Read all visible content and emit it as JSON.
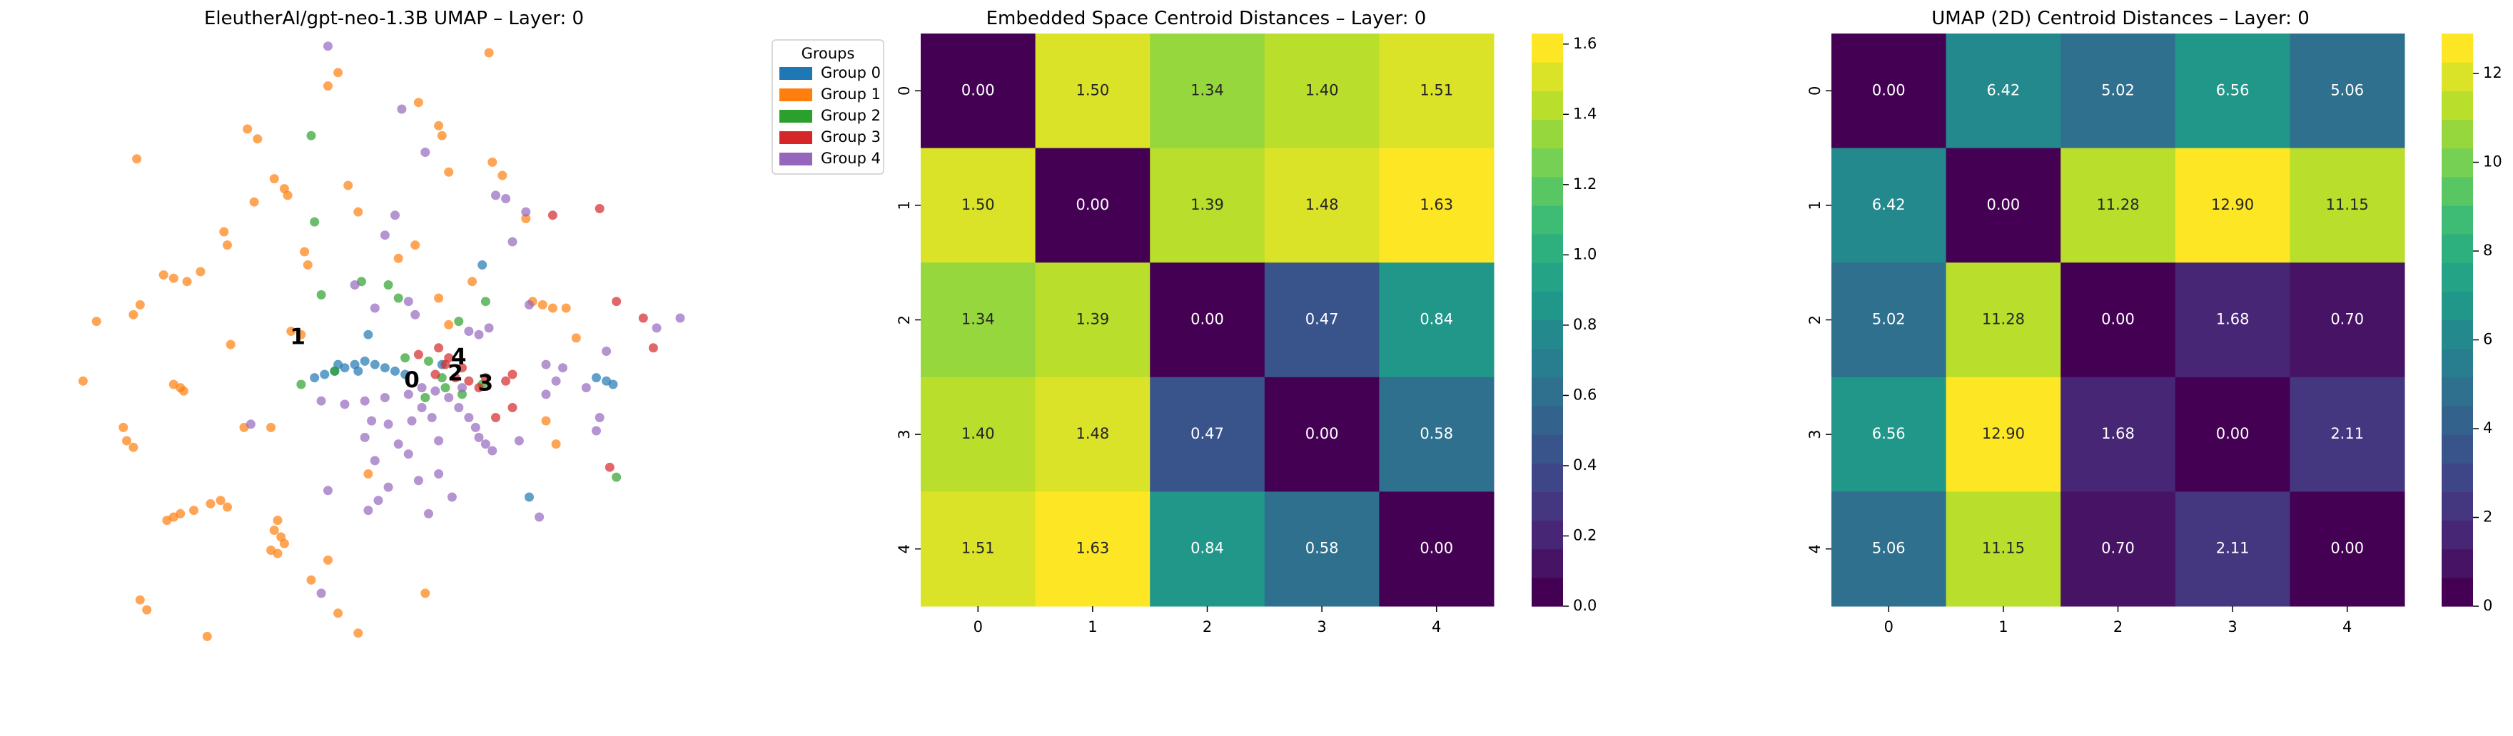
{
  "chart_data": [
    {
      "type": "scatter",
      "title": "EleutherAI/gpt-neo-1.3B UMAP – Layer: 0",
      "legend": {
        "title": "Groups",
        "placement": "top-right, outside plot",
        "entries": [
          "Group 0",
          "Group 1",
          "Group 2",
          "Group 3",
          "Group 4"
        ]
      },
      "colors": [
        "#1f77b4",
        "#ff7f0e",
        "#2ca02c",
        "#d62728",
        "#9467bd"
      ],
      "xlim": [
        -10,
        10
      ],
      "ylim": [
        -10,
        10
      ],
      "grid": false,
      "axes_visible": false,
      "centroid_labels": [
        {
          "label": "0",
          "x": 1.0,
          "y": -0.2
        },
        {
          "label": "1",
          "x": -2.4,
          "y": 1.1
        },
        {
          "label": "2",
          "x": 2.3,
          "y": 0.0
        },
        {
          "label": "3",
          "x": 3.2,
          "y": -0.3
        },
        {
          "label": "4",
          "x": 2.4,
          "y": 0.5
        }
      ],
      "series": [
        {
          "group": 0,
          "points": [
            [
              -1.9,
              -0.1
            ],
            [
              -1.6,
              0.0
            ],
            [
              -1.3,
              0.1
            ],
            [
              -1.0,
              0.2
            ],
            [
              -0.7,
              0.3
            ],
            [
              -0.4,
              0.4
            ],
            [
              -0.1,
              0.3
            ],
            [
              0.2,
              0.2
            ],
            [
              0.5,
              0.1
            ],
            [
              0.8,
              0.0
            ],
            [
              -1.2,
              0.3
            ],
            [
              -0.6,
              0.1
            ],
            [
              6.5,
              -0.1
            ],
            [
              6.8,
              -0.2
            ],
            [
              7.0,
              -0.3
            ],
            [
              3.1,
              3.3
            ],
            [
              4.5,
              -3.7
            ],
            [
              -0.3,
              1.2
            ],
            [
              1.9,
              0.3
            ]
          ]
        },
        {
          "group": 1,
          "points": [
            [
              -7.2,
              6.5
            ],
            [
              -3.9,
              7.4
            ],
            [
              -3.6,
              7.1
            ],
            [
              -1.5,
              8.7
            ],
            [
              -1.2,
              9.1
            ],
            [
              1.2,
              8.2
            ],
            [
              1.8,
              7.5
            ],
            [
              1.9,
              7.2
            ],
            [
              3.3,
              9.7
            ],
            [
              -0.9,
              5.7
            ],
            [
              -3.1,
              5.9
            ],
            [
              -2.8,
              5.6
            ],
            [
              -2.7,
              5.4
            ],
            [
              -0.6,
              4.9
            ],
            [
              2.1,
              6.1
            ],
            [
              3.4,
              6.4
            ],
            [
              3.7,
              6.0
            ],
            [
              -3.7,
              5.2
            ],
            [
              -4.6,
              4.3
            ],
            [
              -4.5,
              3.9
            ],
            [
              -2.2,
              3.7
            ],
            [
              -2.1,
              3.3
            ],
            [
              0.6,
              3.5
            ],
            [
              1.1,
              3.9
            ],
            [
              -6.4,
              3.0
            ],
            [
              -6.1,
              2.9
            ],
            [
              -5.7,
              2.8
            ],
            [
              -7.1,
              2.1
            ],
            [
              -7.3,
              1.8
            ],
            [
              -8.4,
              1.6
            ],
            [
              -5.3,
              3.1
            ],
            [
              -4.4,
              0.9
            ],
            [
              -2.6,
              1.3
            ],
            [
              -2.3,
              1.2
            ],
            [
              -8.8,
              -0.2
            ],
            [
              -6.1,
              -0.3
            ],
            [
              -5.9,
              -0.4
            ],
            [
              -5.8,
              -0.5
            ],
            [
              -4.0,
              -1.6
            ],
            [
              -3.2,
              -1.6
            ],
            [
              -7.6,
              -1.6
            ],
            [
              -7.5,
              -2.0
            ],
            [
              -7.3,
              -2.2
            ],
            [
              -6.3,
              -4.4
            ],
            [
              -6.1,
              -4.3
            ],
            [
              -5.9,
              -4.2
            ],
            [
              -5.5,
              -4.1
            ],
            [
              -5.0,
              -3.9
            ],
            [
              -4.7,
              -3.8
            ],
            [
              -4.5,
              -4.0
            ],
            [
              -7.1,
              -6.8
            ],
            [
              -6.9,
              -7.1
            ],
            [
              -5.1,
              -7.9
            ],
            [
              -3.0,
              -4.4
            ],
            [
              -3.1,
              -4.7
            ],
            [
              -2.9,
              -4.9
            ],
            [
              -2.8,
              -5.1
            ],
            [
              -3.2,
              -5.3
            ],
            [
              -3.0,
              -5.4
            ],
            [
              -2.0,
              -6.2
            ],
            [
              -1.5,
              -5.6
            ],
            [
              -1.2,
              -7.2
            ],
            [
              -0.6,
              -7.8
            ],
            [
              1.4,
              -6.6
            ],
            [
              -0.3,
              -3.0
            ],
            [
              2.8,
              2.8
            ],
            [
              4.6,
              2.2
            ],
            [
              4.9,
              2.1
            ],
            [
              5.2,
              2.0
            ],
            [
              5.6,
              2.0
            ],
            [
              5.0,
              -1.4
            ],
            [
              5.3,
              -2.1
            ],
            [
              4.4,
              4.7
            ],
            [
              5.9,
              1.1
            ],
            [
              1.8,
              2.3
            ],
            [
              2.1,
              1.5
            ]
          ]
        },
        {
          "group": 2,
          "points": [
            [
              -2.0,
              7.2
            ],
            [
              -1.9,
              4.6
            ],
            [
              -1.7,
              2.4
            ],
            [
              -0.5,
              2.8
            ],
            [
              0.3,
              2.7
            ],
            [
              0.6,
              2.3
            ],
            [
              3.2,
              2.2
            ],
            [
              2.4,
              1.6
            ],
            [
              0.8,
              0.5
            ],
            [
              1.5,
              0.4
            ],
            [
              2.0,
              -0.4
            ],
            [
              2.5,
              -0.6
            ],
            [
              -2.3,
              -0.3
            ],
            [
              -1.3,
              0.1
            ],
            [
              1.9,
              -0.1
            ],
            [
              3.1,
              -0.3
            ],
            [
              7.1,
              -3.1
            ],
            [
              1.4,
              -0.7
            ]
          ]
        },
        {
          "group": 3,
          "points": [
            [
              1.8,
              0.8
            ],
            [
              2.1,
              0.5
            ],
            [
              2.5,
              0.2
            ],
            [
              2.0,
              0.3
            ],
            [
              1.7,
              0.0
            ],
            [
              2.3,
              -0.1
            ],
            [
              2.7,
              -0.2
            ],
            [
              3.0,
              -0.4
            ],
            [
              3.8,
              -0.2
            ],
            [
              4.0,
              0.0
            ],
            [
              5.2,
              4.8
            ],
            [
              6.6,
              5.0
            ],
            [
              7.1,
              2.2
            ],
            [
              7.9,
              1.7
            ],
            [
              8.2,
              0.8
            ],
            [
              6.9,
              -2.8
            ],
            [
              4.0,
              -1.0
            ],
            [
              3.5,
              -1.3
            ],
            [
              3.2,
              -0.1
            ],
            [
              1.2,
              0.6
            ]
          ]
        },
        {
          "group": 4,
          "points": [
            [
              -1.5,
              9.9
            ],
            [
              0.7,
              8.0
            ],
            [
              1.4,
              6.7
            ],
            [
              3.5,
              5.4
            ],
            [
              3.8,
              5.3
            ],
            [
              0.5,
              4.8
            ],
            [
              0.2,
              4.2
            ],
            [
              4.0,
              4.0
            ],
            [
              4.4,
              4.9
            ],
            [
              -0.7,
              2.7
            ],
            [
              -0.1,
              2.0
            ],
            [
              0.9,
              2.2
            ],
            [
              1.1,
              1.8
            ],
            [
              2.7,
              1.3
            ],
            [
              3.0,
              1.2
            ],
            [
              3.3,
              1.4
            ],
            [
              4.5,
              2.1
            ],
            [
              5.0,
              0.3
            ],
            [
              5.5,
              0.2
            ],
            [
              6.2,
              -0.4
            ],
            [
              8.3,
              1.4
            ],
            [
              9.0,
              1.7
            ],
            [
              -1.7,
              -0.8
            ],
            [
              -1.0,
              -0.9
            ],
            [
              -0.4,
              -0.8
            ],
            [
              0.2,
              -0.7
            ],
            [
              0.9,
              -0.6
            ],
            [
              1.3,
              -0.4
            ],
            [
              1.7,
              -0.5
            ],
            [
              2.1,
              -0.7
            ],
            [
              2.4,
              -1.0
            ],
            [
              2.7,
              -1.3
            ],
            [
              2.9,
              -1.6
            ],
            [
              3.0,
              -1.9
            ],
            [
              3.2,
              -2.1
            ],
            [
              3.4,
              -2.3
            ],
            [
              1.3,
              -1.0
            ],
            [
              1.6,
              -1.3
            ],
            [
              1.0,
              -1.4
            ],
            [
              0.3,
              -1.5
            ],
            [
              -0.2,
              -1.4
            ],
            [
              0.6,
              -2.1
            ],
            [
              -0.4,
              -1.9
            ],
            [
              -0.1,
              -2.6
            ],
            [
              0.9,
              -2.4
            ],
            [
              1.8,
              -2.0
            ],
            [
              1.2,
              -3.2
            ],
            [
              0.3,
              -3.4
            ],
            [
              0.0,
              -3.8
            ],
            [
              -0.3,
              -4.1
            ],
            [
              1.5,
              -4.2
            ],
            [
              2.2,
              -3.7
            ],
            [
              4.2,
              -2.0
            ],
            [
              5.0,
              -0.6
            ],
            [
              5.3,
              -0.2
            ],
            [
              6.8,
              0.7
            ],
            [
              6.6,
              -1.3
            ],
            [
              6.5,
              -1.7
            ],
            [
              -3.8,
              -1.5
            ],
            [
              -1.5,
              -3.5
            ],
            [
              -1.7,
              -6.6
            ],
            [
              4.8,
              -4.3
            ],
            [
              1.8,
              -3.0
            ],
            [
              2.5,
              -0.4
            ]
          ]
        }
      ]
    },
    {
      "type": "heatmap",
      "title": "Embedded Space Centroid Distances – Layer: 0",
      "xticks": [
        "0",
        "1",
        "2",
        "3",
        "4"
      ],
      "yticks": [
        "0",
        "1",
        "2",
        "3",
        "4"
      ],
      "values": [
        [
          0.0,
          1.5,
          1.34,
          1.4,
          1.51
        ],
        [
          1.5,
          0.0,
          1.39,
          1.48,
          1.63
        ],
        [
          1.34,
          1.39,
          0.0,
          0.47,
          0.84
        ],
        [
          1.4,
          1.48,
          0.47,
          0.0,
          0.58
        ],
        [
          1.51,
          1.63,
          0.84,
          0.58,
          0.0
        ]
      ],
      "colormap": "viridis (discrete)",
      "vmin": 0,
      "vmax": 1.63,
      "colorbar_ticks": [
        "0.0",
        "0.2",
        "0.4",
        "0.6",
        "0.8",
        "1.0",
        "1.2",
        "1.4",
        "1.6"
      ],
      "colorbar_tick_values": [
        0.0,
        0.2,
        0.4,
        0.6,
        0.8,
        1.0,
        1.2,
        1.4,
        1.6
      ]
    },
    {
      "type": "heatmap",
      "title": "UMAP (2D) Centroid Distances – Layer: 0",
      "xticks": [
        "0",
        "1",
        "2",
        "3",
        "4"
      ],
      "yticks": [
        "0",
        "1",
        "2",
        "3",
        "4"
      ],
      "values": [
        [
          0.0,
          6.42,
          5.02,
          6.56,
          5.06
        ],
        [
          6.42,
          0.0,
          11.28,
          12.9,
          11.15
        ],
        [
          5.02,
          11.28,
          0.0,
          1.68,
          0.7
        ],
        [
          6.56,
          12.9,
          1.68,
          0.0,
          2.11
        ],
        [
          5.06,
          11.15,
          0.7,
          2.11,
          0.0
        ]
      ],
      "colormap": "viridis (discrete)",
      "vmin": 0,
      "vmax": 12.9,
      "colorbar_ticks": [
        "0",
        "2",
        "4",
        "6",
        "8",
        "10",
        "12"
      ],
      "colorbar_tick_values": [
        0,
        2,
        4,
        6,
        8,
        10,
        12
      ]
    }
  ]
}
